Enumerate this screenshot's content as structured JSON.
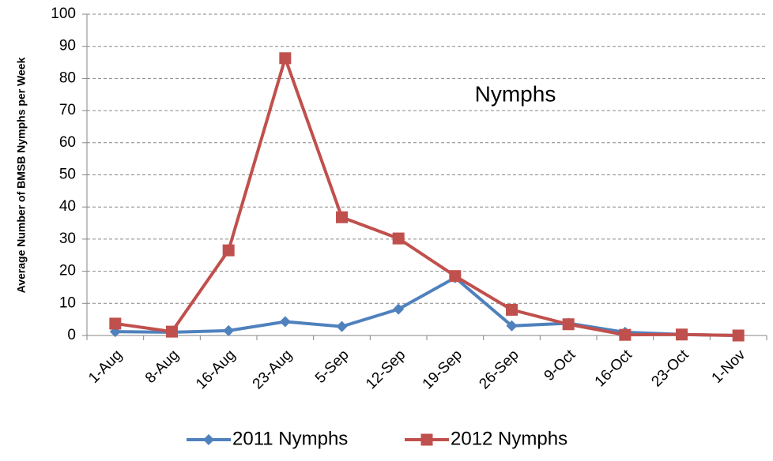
{
  "chart_data": {
    "type": "line",
    "y_label": "Average Number of BMSB Nymphs per Week",
    "annotation": "Nymphs",
    "categories": [
      "1-Aug",
      "8-Aug",
      "16-Aug",
      "23-Aug",
      "5-Sep",
      "12-Sep",
      "19-Sep",
      "26-Sep",
      "9-Oct",
      "16-Oct",
      "23-Oct",
      "1-Nov"
    ],
    "series": [
      {
        "name": "2011 Nymphs",
        "color": "#4f81bd",
        "marker": "diamond",
        "values": [
          1.2,
          1,
          1.5,
          4.3,
          2.8,
          8.2,
          18,
          3,
          3.8,
          1,
          0.3,
          0
        ]
      },
      {
        "name": "2012 Nymphs",
        "color": "#c0504d",
        "marker": "square",
        "values": [
          3.7,
          1.2,
          26.5,
          86.3,
          36.8,
          30.2,
          18.5,
          8,
          3.5,
          0.2,
          0.3,
          0
        ]
      }
    ],
    "ylim": [
      0,
      100
    ],
    "yticks": [
      0,
      10,
      20,
      30,
      40,
      50,
      60,
      70,
      80,
      90,
      100
    ],
    "grid": true,
    "legend": "bottom"
  }
}
